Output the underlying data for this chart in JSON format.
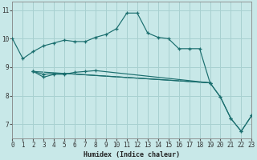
{
  "xlabel": "Humidex (Indice chaleur)",
  "background_color": "#c8e8e8",
  "grid_color": "#a8d0d0",
  "line_color": "#1a6e6e",
  "xlim": [
    0,
    23
  ],
  "ylim": [
    6.5,
    11.3
  ],
  "xticks": [
    0,
    1,
    2,
    3,
    4,
    5,
    6,
    7,
    8,
    9,
    10,
    11,
    12,
    13,
    14,
    15,
    16,
    17,
    18,
    19,
    20,
    21,
    22,
    23
  ],
  "yticks": [
    7,
    8,
    9,
    10,
    11
  ],
  "line1_x": [
    0,
    1,
    2,
    3,
    4,
    5,
    6,
    7,
    8,
    9,
    10,
    11,
    12,
    13,
    14,
    15,
    16,
    17,
    18,
    19
  ],
  "line1_y": [
    10.0,
    9.3,
    9.55,
    9.75,
    9.85,
    9.95,
    9.9,
    9.9,
    10.05,
    10.15,
    10.35,
    10.9,
    10.9,
    10.2,
    10.05,
    10.0,
    9.65,
    9.65,
    9.65,
    8.45
  ],
  "line2_x": [
    2,
    3,
    4,
    5,
    6,
    7,
    8,
    19
  ],
  "line2_y": [
    8.85,
    8.65,
    8.75,
    8.75,
    8.82,
    8.85,
    8.88,
    8.45
  ],
  "line3_x": [
    2,
    3,
    4,
    5,
    19,
    20,
    21,
    22,
    23
  ],
  "line3_y": [
    8.85,
    8.75,
    8.78,
    8.78,
    8.45,
    7.95,
    7.2,
    6.75,
    7.3
  ],
  "line4_x": [
    2,
    19,
    20,
    21,
    22,
    23
  ],
  "line4_y": [
    8.85,
    8.45,
    7.95,
    7.2,
    6.75,
    7.3
  ]
}
